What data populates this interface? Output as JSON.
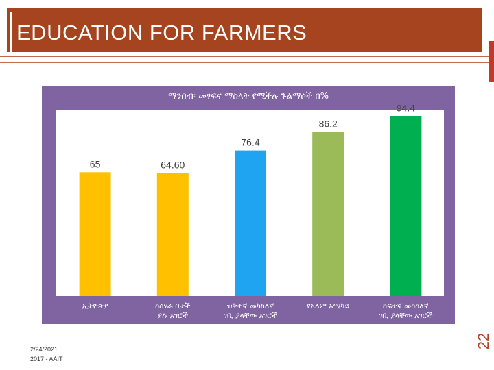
{
  "slide": {
    "title": "EDUCATION FOR FARMERS",
    "slide_number": "22",
    "date": "2/24/2021",
    "footer": "2017 - AAIT"
  },
  "colors": {
    "header": "#a5441e",
    "frame": "#8064a2",
    "bars": [
      "#ffc000",
      "#ffc000",
      "#1ea4f0",
      "#9bbb59",
      "#00b050"
    ]
  },
  "chart_data": {
    "type": "bar",
    "title": "ማንበብ፡ መፃፍና ማስላት የሚችሉ ጉልማሶች በ%",
    "categories": [
      "ኢትዮጵያ",
      "ከሰሃራ በታች ያሉ አገሮች",
      "ዝቅተኛ መካከለኛ ገቢ ያላቸው አገሮች",
      "የአለም አማካይ",
      "ከፍተኛ መካከለኛ ገቢ ያላቸው አገሮች"
    ],
    "values": [
      65,
      64.6,
      76.4,
      86.2,
      94.4
    ],
    "value_labels": [
      "65",
      "64.60",
      "76.4",
      "86.2",
      "94.4"
    ],
    "ylim": [
      0,
      100
    ],
    "xlabel": "",
    "ylabel": "",
    "grid": false
  }
}
